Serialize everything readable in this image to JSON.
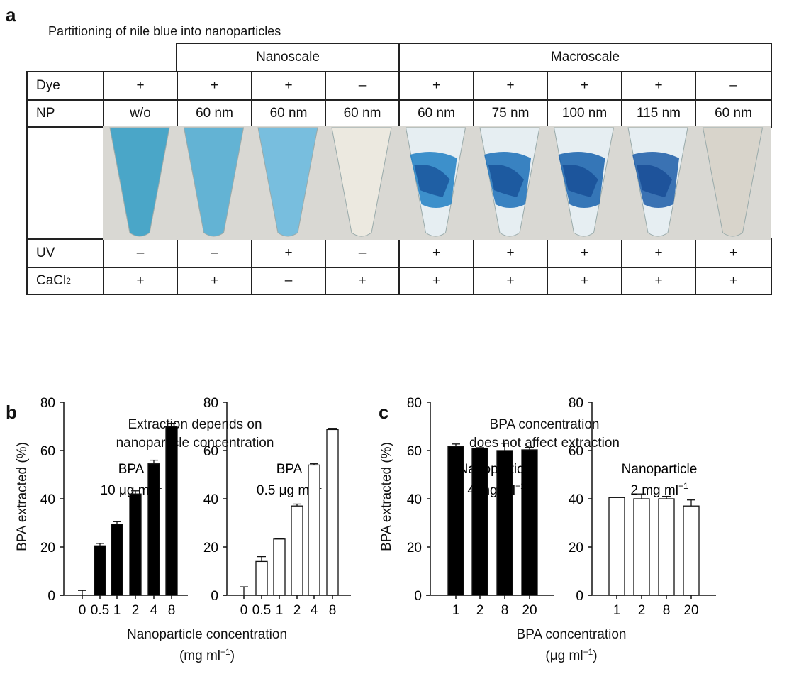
{
  "panel_a": {
    "label": "a",
    "title": "Partitioning of nile blue into nanoparticles",
    "groups": [
      {
        "label": "Nanoscale"
      },
      {
        "label": "Macroscale"
      }
    ],
    "rows": [
      {
        "label": "Dye",
        "values": [
          "+",
          "+",
          "+",
          "–",
          "+",
          "+",
          "+",
          "+",
          "–"
        ]
      },
      {
        "label": "NP",
        "values": [
          "w/o",
          "60 nm",
          "60 nm",
          "60 nm",
          "60 nm",
          "75 nm",
          "100 nm",
          "115 nm",
          "60 nm"
        ]
      },
      {
        "label": "UV",
        "values": [
          "–",
          "–",
          "+",
          "–",
          "+",
          "+",
          "+",
          "+",
          "+"
        ]
      },
      {
        "label": "CaCl",
        "label_sub": "2",
        "values": [
          "+",
          "+",
          "–",
          "+",
          "+",
          "+",
          "+",
          "+",
          "+"
        ]
      }
    ],
    "tubes": [
      {
        "color": "#4aa6c8",
        "pattern": "uniform"
      },
      {
        "color": "#63b3d4",
        "pattern": "uniform"
      },
      {
        "color": "#78bede",
        "pattern": "uniform"
      },
      {
        "color": "#ece9e0",
        "pattern": "uniform"
      },
      {
        "color": "#1f7fc4",
        "pattern": "aggregate"
      },
      {
        "color": "#1a6fb8",
        "pattern": "aggregate"
      },
      {
        "color": "#1560ad",
        "pattern": "aggregate"
      },
      {
        "color": "#1b5ca8",
        "pattern": "aggregate"
      },
      {
        "color": "#d8d4cb",
        "pattern": "uniform"
      }
    ]
  },
  "panel_b": {
    "label": "b",
    "title_line1": "Extraction depends on",
    "title_line2": "nanoparticle concentration",
    "ylabel": "BPA extracted (%)",
    "xlabel_line1": "Nanoparticle concentration",
    "xlabel_unit": "(mg ml",
    "xlabel_unit_sup": "−1",
    "xlabel_unit_end": ")"
  },
  "panel_c": {
    "label": "c",
    "title_line1": "BPA concentration",
    "title_line2": "does not affect extraction",
    "ylabel": "BPA extracted (%)",
    "xlabel_line1": "BPA concentration",
    "xlabel_unit": "(μg ml",
    "xlabel_unit_sup": "−1",
    "xlabel_unit_end": ")"
  },
  "chart_data": [
    {
      "type": "bar",
      "panel": "b",
      "subtitle_line1": "BPA",
      "subtitle_line2": "10 μg ml",
      "subtitle_sup": "−1",
      "fill": "#000000",
      "categories": [
        "0",
        "0.5",
        "1",
        "2",
        "4",
        "8"
      ],
      "values": [
        0,
        20.5,
        29.5,
        42,
        54.5,
        70
      ],
      "errors": [
        2,
        1,
        1,
        1.3,
        1.5,
        1.3
      ],
      "ylim": [
        0,
        80
      ],
      "yticks": [
        0,
        20,
        40,
        60,
        80
      ],
      "grid": false
    },
    {
      "type": "bar",
      "panel": "b",
      "subtitle_line1": "BPA",
      "subtitle_line2": "0.5 μg ml",
      "subtitle_sup": "−1",
      "fill": "#ffffff",
      "categories": [
        "0",
        "0.5",
        "1",
        "2",
        "4",
        "8"
      ],
      "values": [
        0,
        14,
        23.3,
        37,
        54,
        68.7
      ],
      "errors": [
        3.5,
        2,
        0.2,
        0.8,
        0.5,
        0.5
      ],
      "ylim": [
        0,
        80
      ],
      "yticks": [
        0,
        20,
        40,
        60,
        80
      ],
      "grid": false
    },
    {
      "type": "bar",
      "panel": "c",
      "subtitle_line1": "Nanoparticle",
      "subtitle_line2": "4 mg ml",
      "subtitle_sup": "−1",
      "fill": "#000000",
      "categories": [
        "1",
        "2",
        "8",
        "20"
      ],
      "values": [
        61.7,
        61,
        60,
        60.3
      ],
      "errors": [
        1,
        0.2,
        3,
        1
      ],
      "ylim": [
        0,
        80
      ],
      "yticks": [
        0,
        20,
        40,
        60,
        80
      ],
      "grid": false
    },
    {
      "type": "bar",
      "panel": "c",
      "subtitle_line1": "Nanoparticle",
      "subtitle_line2": "2 mg ml",
      "subtitle_sup": "−1",
      "fill": "#ffffff",
      "categories": [
        "1",
        "2",
        "8",
        "20"
      ],
      "values": [
        40.5,
        40,
        40,
        37
      ],
      "errors": [
        0,
        2,
        1,
        2.5
      ],
      "ylim": [
        0,
        80
      ],
      "yticks": [
        0,
        20,
        40,
        60,
        80
      ],
      "grid": false
    }
  ]
}
